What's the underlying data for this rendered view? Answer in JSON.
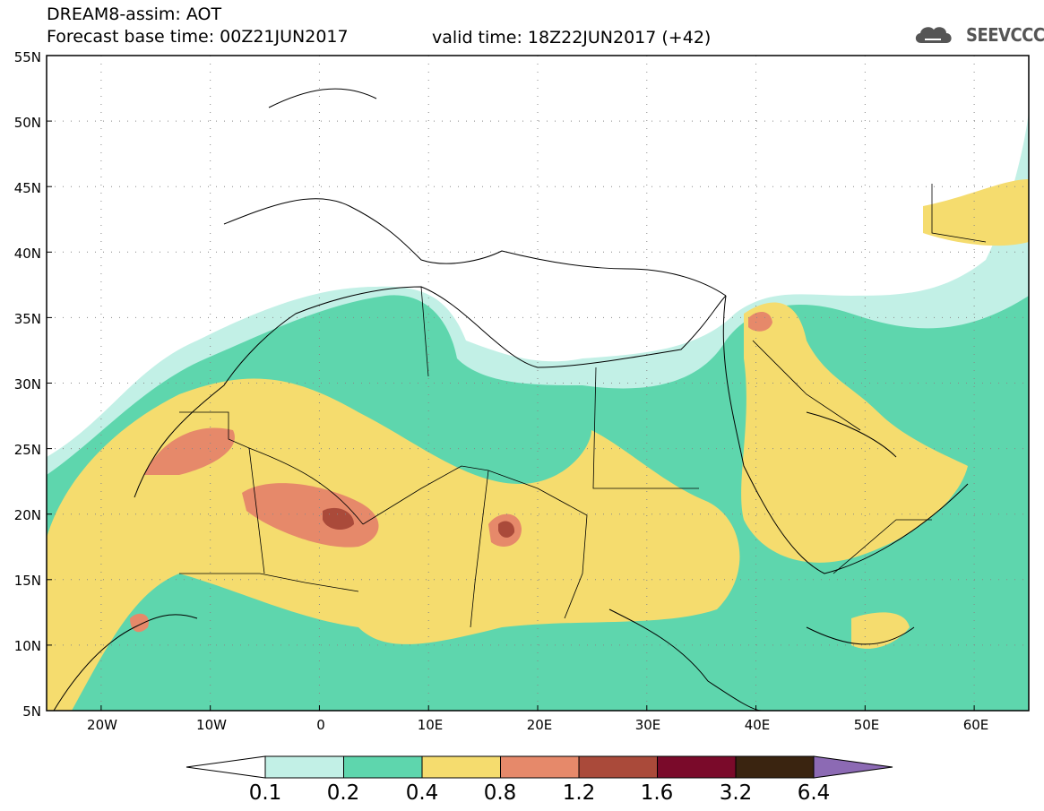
{
  "header": {
    "title_line1": "DREAM8-assim: AOT",
    "title_line2": "Forecast base time: 00Z21JUN2017",
    "valid_time": "valid time: 18Z22JUN2017 (+42)",
    "logo_text": "SEEVCCC",
    "logo_icon": "cloud-logo-icon"
  },
  "map": {
    "variable": "AOT",
    "lon_range": [
      -25,
      65
    ],
    "lat_range": [
      5,
      55
    ],
    "lat_ticks": [
      "5N",
      "10N",
      "15N",
      "20N",
      "25N",
      "30N",
      "35N",
      "40N",
      "45N",
      "50N",
      "55N"
    ],
    "lon_ticks": [
      "20W",
      "10W",
      "0",
      "10E",
      "20E",
      "30E",
      "40E",
      "50E",
      "60E"
    ],
    "grid": "dotted"
  },
  "colorbar": {
    "levels": [
      "0.1",
      "0.2",
      "0.4",
      "0.8",
      "1.2",
      "1.6",
      "3.2",
      "6.4"
    ],
    "colors": [
      "#c2f0e6",
      "#5ed6ad",
      "#f5dc6e",
      "#e6896a",
      "#aa4a3a",
      "#7a0a2a",
      "#3a2410",
      "#8c6ab4"
    ]
  }
}
